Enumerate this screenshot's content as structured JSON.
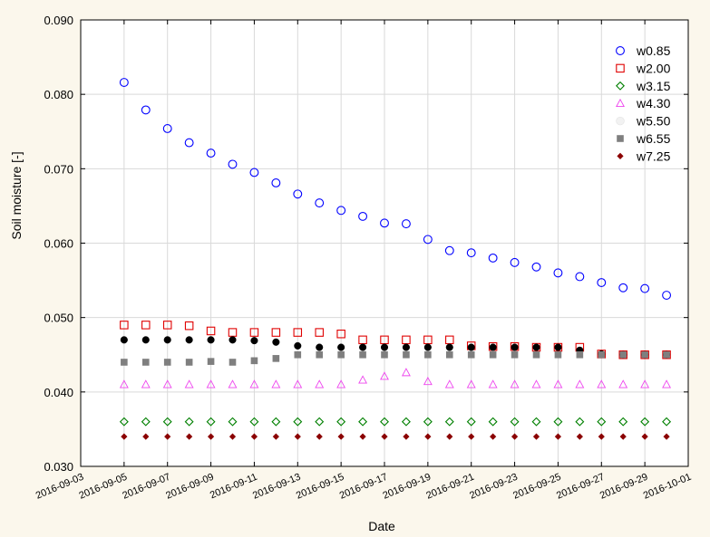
{
  "chart_data": {
    "type": "scatter",
    "title": "",
    "xlabel": "Date",
    "ylabel": "Soil moisture [-]",
    "x_type": "date",
    "xlim": [
      "2016-09-03",
      "2016-10-01"
    ],
    "ylim": [
      0.03,
      0.09
    ],
    "x_ticks": [
      "2016-09-03",
      "2016-09-05",
      "2016-09-07",
      "2016-09-09",
      "2016-09-11",
      "2016-09-13",
      "2016-09-15",
      "2016-09-17",
      "2016-09-19",
      "2016-09-21",
      "2016-09-23",
      "2016-09-25",
      "2016-09-27",
      "2016-09-29",
      "2016-10-01"
    ],
    "y_ticks": [
      "0.030",
      "0.040",
      "0.050",
      "0.060",
      "0.070",
      "0.080",
      "0.090"
    ],
    "grid": true,
    "legend_position": "top-right",
    "x": [
      "2016-09-05",
      "2016-09-06",
      "2016-09-07",
      "2016-09-08",
      "2016-09-09",
      "2016-09-10",
      "2016-09-11",
      "2016-09-12",
      "2016-09-13",
      "2016-09-14",
      "2016-09-15",
      "2016-09-16",
      "2016-09-17",
      "2016-09-18",
      "2016-09-19",
      "2016-09-20",
      "2016-09-21",
      "2016-09-22",
      "2016-09-23",
      "2016-09-24",
      "2016-09-25",
      "2016-09-26",
      "2016-09-27",
      "2016-09-28",
      "2016-09-29",
      "2016-09-30"
    ],
    "series": [
      {
        "name": "w0.85",
        "marker": "circle-open",
        "color": "#0000ff",
        "values": [
          0.0816,
          0.0779,
          0.0754,
          0.0735,
          0.0721,
          0.0706,
          0.0695,
          0.0681,
          0.0666,
          0.0654,
          0.0644,
          0.0636,
          0.0627,
          0.0626,
          0.0605,
          0.059,
          0.0587,
          0.058,
          0.0574,
          0.0568,
          0.056,
          0.0555,
          0.0547,
          0.054,
          0.0539,
          0.053
        ]
      },
      {
        "name": "w2.00",
        "marker": "square-open",
        "color": "#e00000",
        "values": [
          0.049,
          0.049,
          0.049,
          0.0489,
          0.0482,
          0.048,
          0.048,
          0.048,
          0.048,
          0.048,
          0.0478,
          0.047,
          0.047,
          0.047,
          0.047,
          0.047,
          0.0462,
          0.0461,
          0.0461,
          0.046,
          0.046,
          0.046,
          0.0451,
          0.045,
          0.045,
          0.045
        ]
      },
      {
        "name": "w3.15",
        "marker": "diamond-open",
        "color": "#008000",
        "values": [
          0.036,
          0.036,
          0.036,
          0.036,
          0.036,
          0.036,
          0.036,
          0.036,
          0.036,
          0.036,
          0.036,
          0.036,
          0.036,
          0.036,
          0.036,
          0.036,
          0.036,
          0.036,
          0.036,
          0.036,
          0.036,
          0.036,
          0.036,
          0.036,
          0.036,
          0.036
        ]
      },
      {
        "name": "w4.30",
        "marker": "triangle-open",
        "color": "#ee44ee",
        "values": [
          0.041,
          0.041,
          0.041,
          0.041,
          0.041,
          0.041,
          0.041,
          0.041,
          0.041,
          0.041,
          0.041,
          0.0416,
          0.0421,
          0.0426,
          0.0414,
          0.041,
          0.041,
          0.041,
          0.041,
          0.041,
          0.041,
          0.041,
          0.041,
          0.041,
          0.041,
          0.041
        ]
      },
      {
        "name": "w5.50",
        "marker": "circle-filled",
        "color": "#000000",
        "legend_color": "#f2f2f2",
        "values": [
          0.047,
          0.047,
          0.047,
          0.047,
          0.047,
          0.047,
          0.0469,
          0.0467,
          0.0462,
          0.046,
          0.046,
          0.046,
          0.046,
          0.046,
          0.046,
          0.046,
          0.046,
          0.046,
          0.046,
          0.046,
          0.046,
          0.0456,
          0.0451,
          0.045,
          0.045,
          0.045
        ]
      },
      {
        "name": "w6.55",
        "marker": "square-filled",
        "color": "#7f7f7f",
        "values": [
          0.044,
          0.044,
          0.044,
          0.044,
          0.0441,
          0.044,
          0.0442,
          0.0445,
          0.045,
          0.045,
          0.045,
          0.045,
          0.045,
          0.045,
          0.045,
          0.045,
          0.045,
          0.045,
          0.045,
          0.045,
          0.045,
          0.045,
          0.045,
          0.045,
          0.045,
          0.045
        ]
      },
      {
        "name": "w7.25",
        "marker": "diamond-filled",
        "color": "#8b0000",
        "values": [
          0.034,
          0.034,
          0.034,
          0.034,
          0.034,
          0.034,
          0.034,
          0.034,
          0.034,
          0.034,
          0.034,
          0.034,
          0.034,
          0.034,
          0.034,
          0.034,
          0.034,
          0.034,
          0.034,
          0.034,
          0.034,
          0.034,
          0.034,
          0.034,
          0.034,
          0.034
        ]
      }
    ]
  },
  "colors": {
    "background": "#fbf7ec",
    "plot_background": "#ffffff",
    "grid": "#d9d9d9"
  }
}
